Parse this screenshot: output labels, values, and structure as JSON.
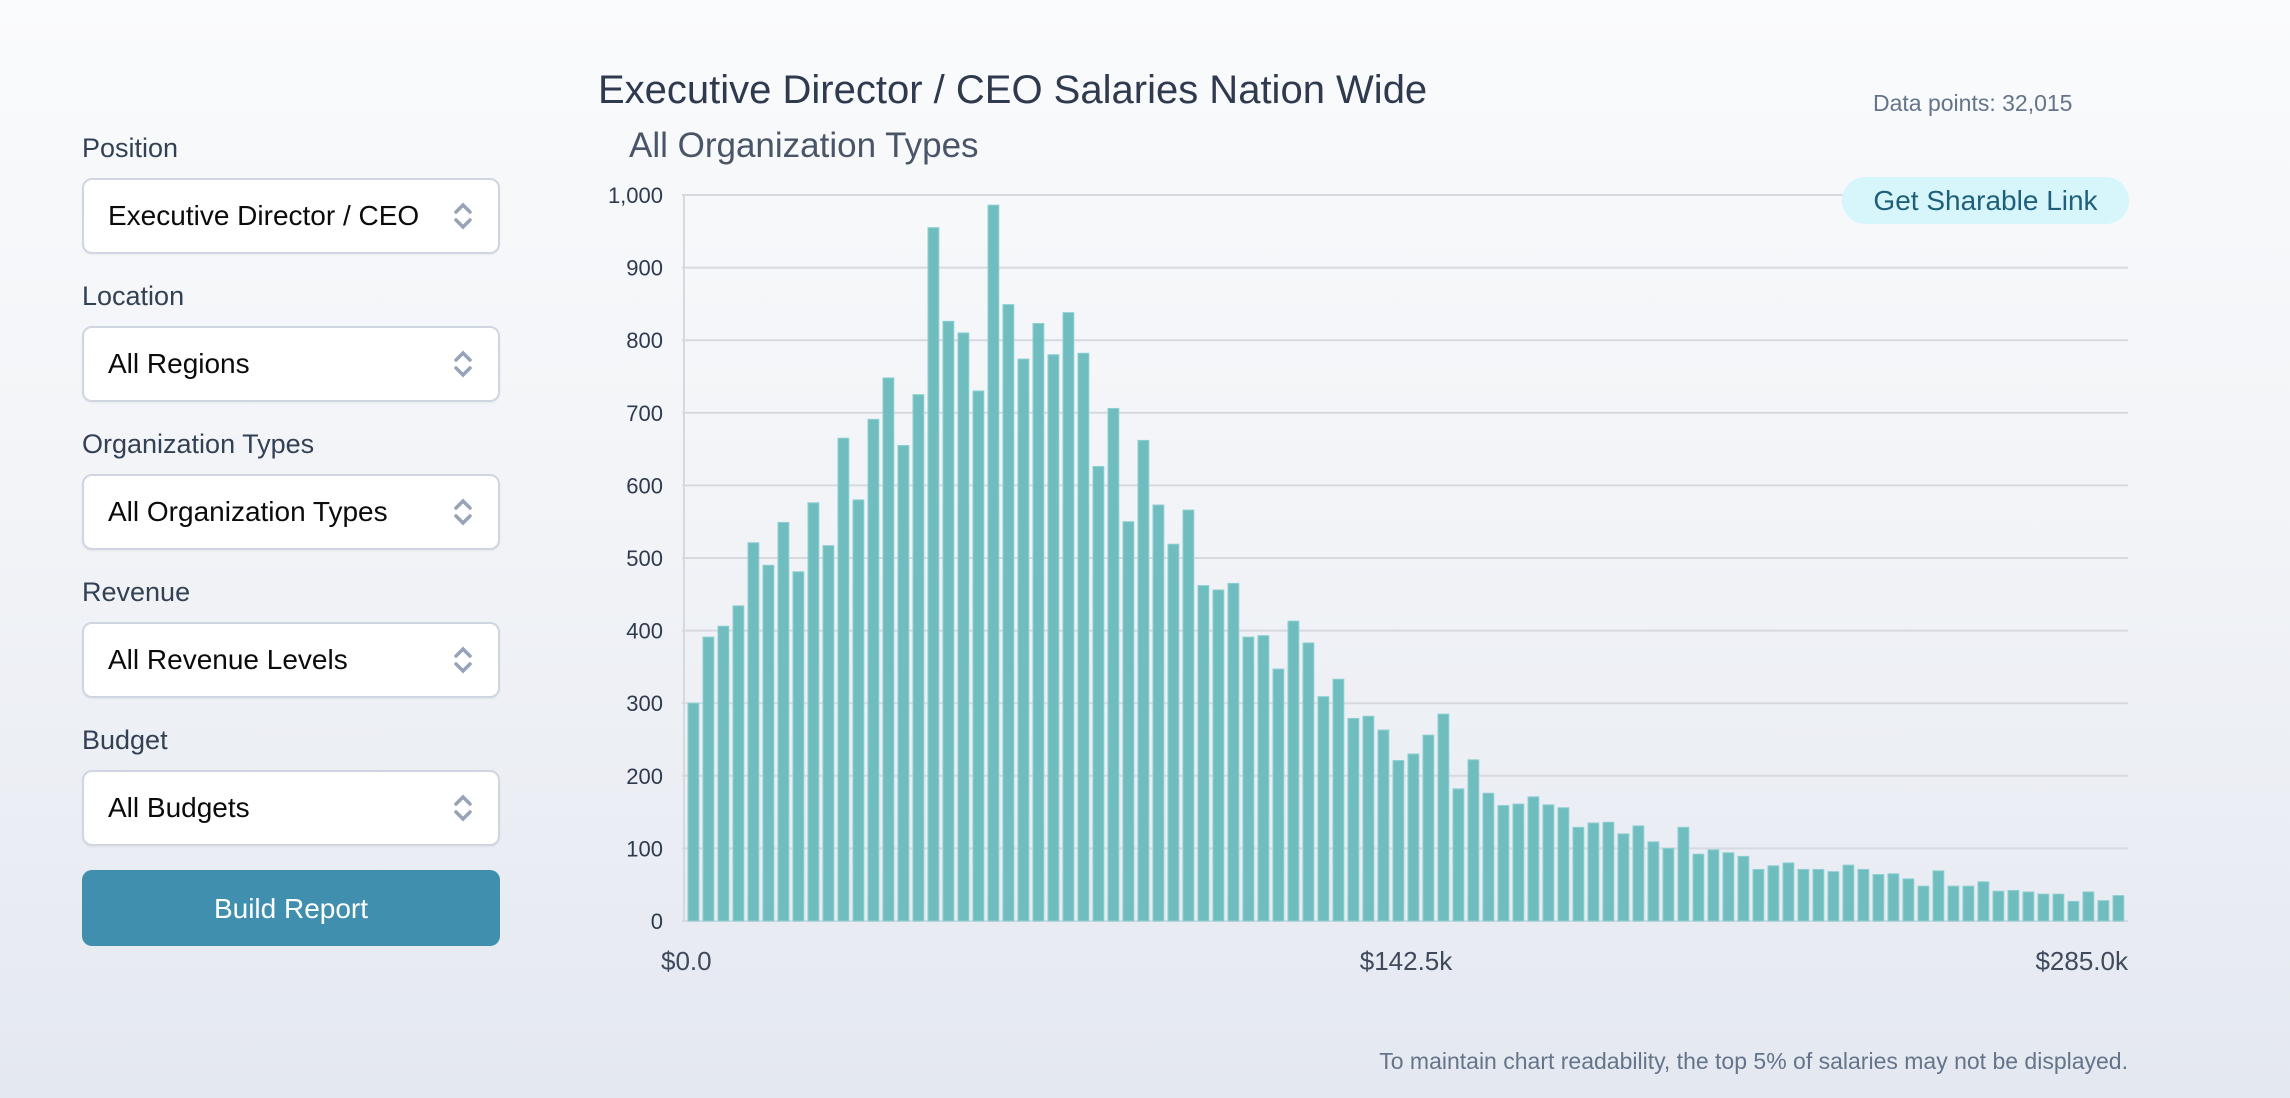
{
  "sidebar": {
    "fields": [
      {
        "label": "Position",
        "value": "Executive Director / CEO"
      },
      {
        "label": "Location",
        "value": "All Regions"
      },
      {
        "label": "Organization Types",
        "value": "All Organization Types"
      },
      {
        "label": "Revenue",
        "value": "All Revenue Levels"
      },
      {
        "label": "Budget",
        "value": "All Budgets"
      }
    ],
    "build_button": "Build Report"
  },
  "header": {
    "title": "Executive Director / CEO Salaries Nation Wide",
    "subtitle": "All Organization Types",
    "data_points": "Data points: 32,015",
    "share_button": "Get Sharable Link"
  },
  "footnote": "To maintain chart readability, the top 5% of salaries may not be displayed.",
  "colors": {
    "bar": "#6fbdbf",
    "button": "#418faf",
    "share_bg": "#d6f6fb",
    "share_text": "#1f5f7a"
  },
  "chart_data": {
    "type": "bar",
    "title": "Executive Director / CEO Salaries Nation Wide",
    "subtitle": "All Organization Types",
    "xlabel": "",
    "ylabel": "",
    "x_range": [
      0,
      285000
    ],
    "x_tick_labels": [
      "$0.0",
      "$142.5k",
      "$285.0k"
    ],
    "ylim": [
      0,
      1000
    ],
    "y_ticks": [
      0,
      100,
      200,
      300,
      400,
      500,
      600,
      700,
      800,
      900,
      1000
    ],
    "y_tick_labels": [
      "0",
      "100",
      "200",
      "300",
      "400",
      "500",
      "600",
      "700",
      "800",
      "900",
      "1,000"
    ],
    "grid": true,
    "bin_count": 96,
    "values": [
      300,
      391,
      406,
      434,
      521,
      490,
      549,
      481,
      576,
      517,
      665,
      580,
      691,
      748,
      655,
      725,
      955,
      826,
      810,
      730,
      986,
      849,
      774,
      823,
      780,
      838,
      782,
      626,
      706,
      550,
      662,
      573,
      519,
      566,
      462,
      456,
      465,
      391,
      393,
      347,
      413,
      383,
      309,
      333,
      279,
      282,
      263,
      221,
      230,
      256,
      285,
      182,
      222,
      176,
      159,
      161,
      171,
      160,
      156,
      129,
      135,
      136,
      120,
      131,
      109,
      100,
      129,
      92,
      98,
      94,
      89,
      71,
      76,
      80,
      71,
      71,
      68,
      77,
      71,
      64,
      65,
      58,
      48,
      69,
      48,
      48,
      54,
      41,
      42,
      40,
      37,
      37,
      27,
      40,
      28,
      35
    ]
  }
}
